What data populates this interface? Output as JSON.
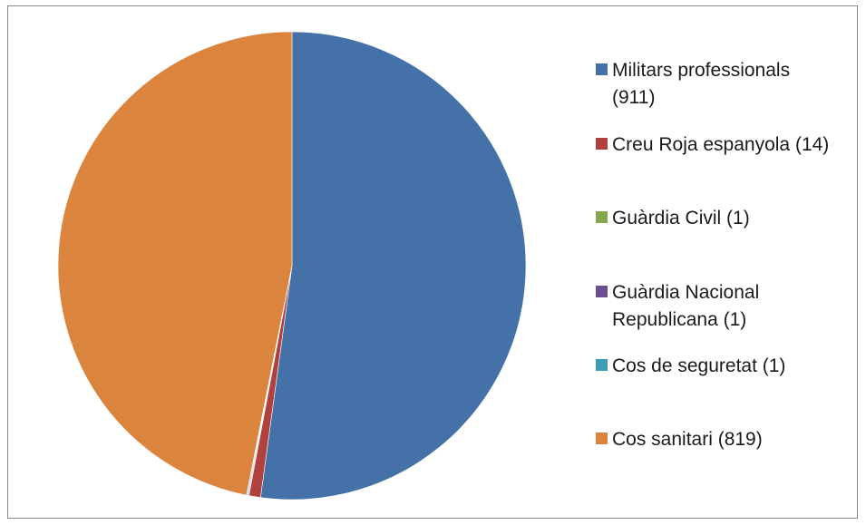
{
  "chart_data": {
    "type": "pie",
    "title": "",
    "start_angle_deg": 0,
    "direction": "clockwise",
    "slices": [
      {
        "label": "Militars professionals (911)",
        "value": 911,
        "color": "#4472A8"
      },
      {
        "label": "Creu Roja espanyola (14)",
        "value": 14,
        "color": "#B0413E"
      },
      {
        "label": "Guàrdia Civil (1)",
        "value": 1,
        "color": "#86A64B"
      },
      {
        "label": "Guàrdia Nacional Republicana (1)",
        "value": 1,
        "color": "#6C4E93"
      },
      {
        "label": "Cos de seguretat (1)",
        "value": 1,
        "color": "#3C9DB5"
      },
      {
        "label": "Cos sanitari (819)",
        "value": 819,
        "color": "#DB843D"
      }
    ],
    "legend": {
      "placement": "right",
      "entries": [
        "Militars professionals (911)",
        "Creu Roja espanyola (14)",
        "Guàrdia Civil (1)",
        "Guàrdia Nacional Republicana (1)",
        "Cos de seguretat (1)",
        "Cos sanitari (819)"
      ]
    }
  }
}
